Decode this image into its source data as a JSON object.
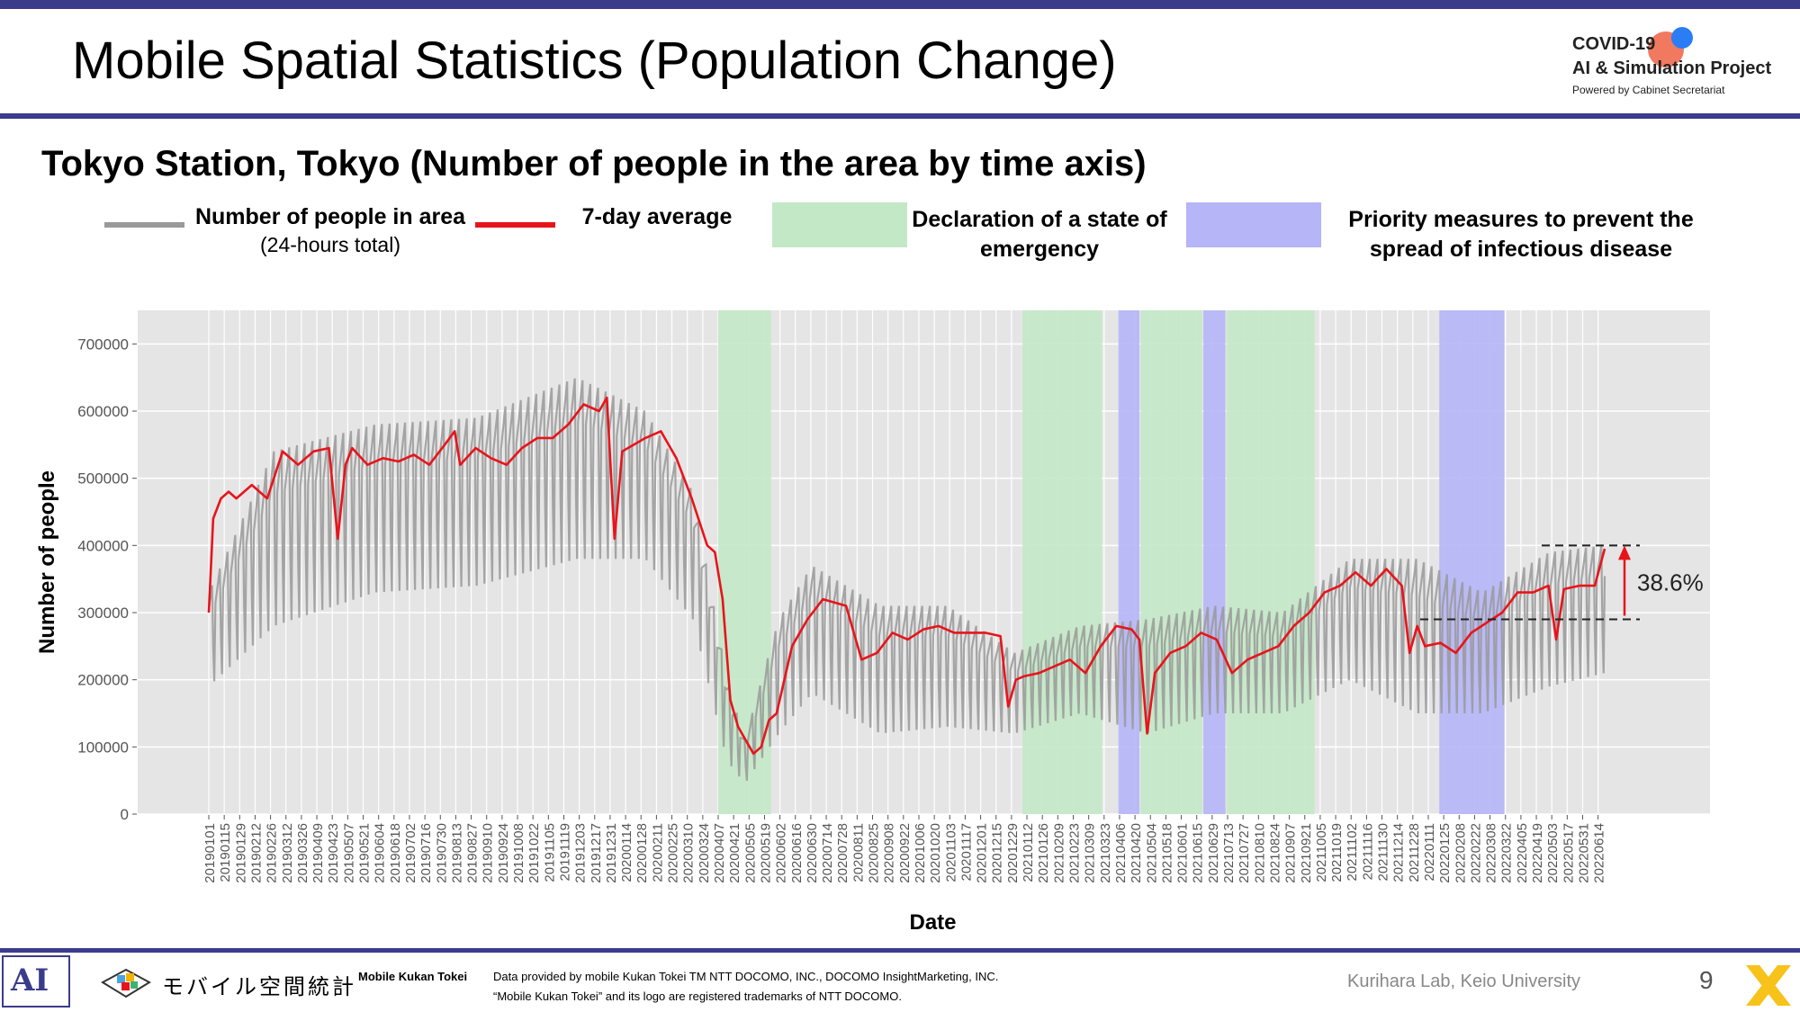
{
  "slide": {
    "title": "Mobile Spatial Statistics (Population Change)",
    "logo": {
      "line1": "COVID-19",
      "line2": "AI & Simulation Project",
      "line3": "Powered by Cabinet Secretariat"
    },
    "page_number": "9",
    "accent_color": "#3b3b8c"
  },
  "legend": {
    "people_label": "Number of people in area",
    "people_sub": "(24-hours total)",
    "avg_label": "7-day average",
    "emergency_label": "Declaration of a state of emergency",
    "priority_label": "Priority measures to prevent the spread of infectious disease",
    "people_color": "#999999",
    "avg_color": "#e8141b",
    "emergency_color": "#c3e8c6",
    "priority_color": "#b5b5f7"
  },
  "footer": {
    "app_name": "モバイル空間統計",
    "app_name_en": "Mobile Kukan Tokei",
    "credit_line1": "Data provided by mobile Kukan Tokei TM NTT DOCOMO, INC., DOCOMO InsightMarketing, INC.",
    "credit_line2": "“Mobile Kukan Tokei” and its logo are registered trademarks of NTT DOCOMO.",
    "lab": "Kurihara Lab, Keio University"
  },
  "chart_data": {
    "type": "line",
    "title": "Tokyo Station, Tokyo (Number of people in the area by time axis)",
    "xlabel": "Date",
    "ylabel": "Number of people",
    "ylim": [
      0,
      750000
    ],
    "yticks": [
      0,
      100000,
      200000,
      300000,
      400000,
      500000,
      600000,
      700000
    ],
    "x_start": "20190101",
    "x_end": "20220620",
    "xticks": [
      "20190101",
      "20190115",
      "20190129",
      "20190212",
      "20190226",
      "20190312",
      "20190326",
      "20190409",
      "20190423",
      "20190507",
      "20190521",
      "20190604",
      "20190618",
      "20190702",
      "20190716",
      "20190730",
      "20190813",
      "20190827",
      "20190910",
      "20190924",
      "20191008",
      "20191022",
      "20191105",
      "20191119",
      "20191203",
      "20191217",
      "20191231",
      "20200114",
      "20200128",
      "20200211",
      "20200225",
      "20200310",
      "20200324",
      "20200407",
      "20200421",
      "20200505",
      "20200519",
      "20200602",
      "20200616",
      "20200630",
      "20200714",
      "20200728",
      "20200811",
      "20200825",
      "20200908",
      "20200922",
      "20201006",
      "20201020",
      "20201103",
      "20201117",
      "20201201",
      "20201215",
      "20201229",
      "20210112",
      "20210126",
      "20210209",
      "20210223",
      "20210309",
      "20210323",
      "20210406",
      "20210420",
      "20210504",
      "20210518",
      "20210601",
      "20210615",
      "20210629",
      "20210713",
      "20210727",
      "20210810",
      "20210824",
      "20210907",
      "20210921",
      "20211005",
      "20211019",
      "20211102",
      "20211116",
      "20211130",
      "20211214",
      "20211228",
      "20220111",
      "20220125",
      "20220208",
      "20220222",
      "20220308",
      "20220322",
      "20220405",
      "20220419",
      "20220503",
      "20220517",
      "20220531",
      "20220614"
    ],
    "grid": true,
    "legend_position": "top",
    "shaded_periods": [
      {
        "type": "emergency",
        "start": "20200407",
        "end": "20200525"
      },
      {
        "type": "emergency",
        "start": "20210108",
        "end": "20210321"
      },
      {
        "type": "priority",
        "start": "20210405",
        "end": "20210424"
      },
      {
        "type": "emergency",
        "start": "20210425",
        "end": "20210620"
      },
      {
        "type": "priority",
        "start": "20210621",
        "end": "20210711"
      },
      {
        "type": "emergency",
        "start": "20210712",
        "end": "20210930"
      },
      {
        "type": "priority",
        "start": "20220121",
        "end": "20220321"
      }
    ],
    "series": [
      {
        "name": "7-day average",
        "x": [
          "20190101",
          "20190105",
          "20190112",
          "20190119",
          "20190126",
          "20190209",
          "20190223",
          "20190309",
          "20190323",
          "20190406",
          "20190420",
          "20190428",
          "20190505",
          "20190511",
          "20190525",
          "20190608",
          "20190622",
          "20190706",
          "20190720",
          "20190803",
          "20190812",
          "20190817",
          "20190831",
          "20190914",
          "20190928",
          "20191012",
          "20191026",
          "20191109",
          "20191123",
          "20191207",
          "20191221",
          "20191228",
          "20200104",
          "20200111",
          "20200201",
          "20200215",
          "20200229",
          "20200314",
          "20200328",
          "20200404",
          "20200411",
          "20200418",
          "20200425",
          "20200502",
          "20200509",
          "20200516",
          "20200523",
          "20200530",
          "20200613",
          "20200627",
          "20200711",
          "20200801",
          "20200815",
          "20200829",
          "20200912",
          "20200926",
          "20201010",
          "20201024",
          "20201107",
          "20201121",
          "20201205",
          "20201219",
          "20201226",
          "20210102",
          "20210109",
          "20210123",
          "20210206",
          "20210220",
          "20210306",
          "20210320",
          "20210403",
          "20210417",
          "20210424",
          "20210501",
          "20210508",
          "20210522",
          "20210605",
          "20210619",
          "20210703",
          "20210717",
          "20210731",
          "20210814",
          "20210828",
          "20210911",
          "20210925",
          "20211009",
          "20211023",
          "20211106",
          "20211120",
          "20211204",
          "20211218",
          "20211225",
          "20220101",
          "20220108",
          "20220122",
          "20220205",
          "20220219",
          "20220305",
          "20220319",
          "20220402",
          "20220416",
          "20220430",
          "20220507",
          "20220514",
          "20220528",
          "20220611",
          "20220620"
        ],
        "y": [
          300000,
          440000,
          470000,
          480000,
          470000,
          490000,
          470000,
          540000,
          520000,
          540000,
          545000,
          410000,
          520000,
          545000,
          520000,
          530000,
          525000,
          535000,
          520000,
          550000,
          570000,
          520000,
          545000,
          530000,
          520000,
          545000,
          560000,
          560000,
          580000,
          610000,
          600000,
          620000,
          410000,
          540000,
          560000,
          570000,
          530000,
          470000,
          400000,
          390000,
          320000,
          170000,
          130000,
          110000,
          90000,
          100000,
          140000,
          150000,
          250000,
          290000,
          320000,
          310000,
          230000,
          240000,
          270000,
          260000,
          275000,
          280000,
          270000,
          270000,
          270000,
          265000,
          160000,
          200000,
          205000,
          210000,
          220000,
          230000,
          210000,
          250000,
          280000,
          275000,
          260000,
          120000,
          210000,
          240000,
          250000,
          270000,
          260000,
          210000,
          230000,
          240000,
          250000,
          280000,
          300000,
          330000,
          340000,
          360000,
          340000,
          365000,
          340000,
          240000,
          280000,
          250000,
          255000,
          240000,
          270000,
          285000,
          300000,
          330000,
          330000,
          340000,
          260000,
          335000,
          340000,
          340000,
          395000
        ]
      },
      {
        "name": "Number of people in area",
        "x": [
          "20190101",
          "20190301",
          "20190601",
          "20190901",
          "20191201",
          "20200201",
          "20200315",
          "20200415",
          "20200501",
          "20200601",
          "20200701",
          "20200901",
          "20201101",
          "20210101",
          "20210301",
          "20210501",
          "20210701",
          "20210901",
          "20211101",
          "20220101",
          "20220301",
          "20220501",
          "20220620"
        ],
        "y_weekday": [
          330000,
          540000,
          580000,
          590000,
          650000,
          600000,
          480000,
          200000,
          110000,
          290000,
          370000,
          310000,
          310000,
          240000,
          280000,
          290000,
          310000,
          300000,
          380000,
          380000,
          330000,
          390000,
          400000
        ],
        "y_weekend": [
          190000,
          280000,
          330000,
          340000,
          380000,
          380000,
          290000,
          80000,
          45000,
          120000,
          180000,
          120000,
          130000,
          120000,
          150000,
          120000,
          150000,
          150000,
          200000,
          150000,
          150000,
          190000,
          210000
        ]
      }
    ],
    "annotations": [
      {
        "text": "38.6%",
        "from": 290000,
        "to": 400000
      }
    ]
  }
}
